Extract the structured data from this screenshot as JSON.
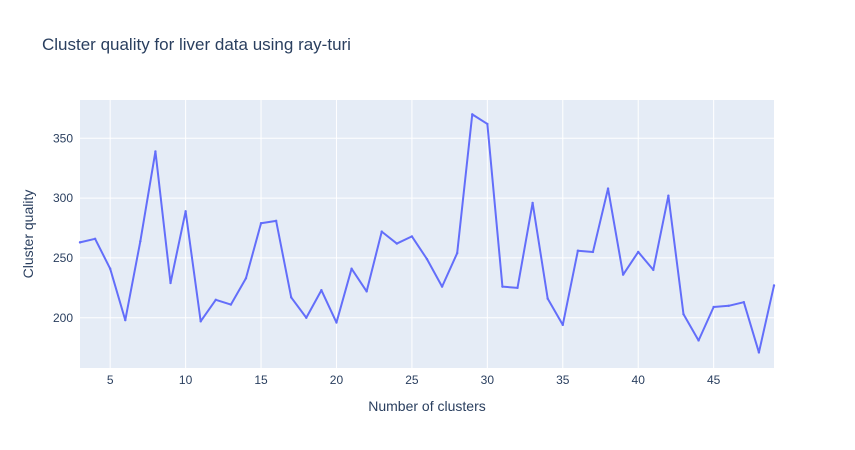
{
  "chart_data": {
    "type": "line",
    "title": "Cluster quality for liver data using ray-turi",
    "xlabel": "Number of clusters",
    "ylabel": "Cluster quality",
    "xlim": [
      3,
      49
    ],
    "ylim": [
      158,
      382
    ],
    "xticks": [
      5,
      10,
      15,
      20,
      25,
      30,
      35,
      40,
      45
    ],
    "yticks": [
      200,
      250,
      300,
      350
    ],
    "grid": true,
    "legend": "none",
    "colors": {
      "line": "#636efa",
      "plot_background": "#e5ecf6",
      "grid": "#ffffff",
      "text": "#2a3f5f",
      "paper_background": "#ffffff"
    },
    "series": [
      {
        "x": [
          3,
          4,
          5,
          6,
          7,
          8,
          9,
          10,
          11,
          12,
          13,
          14,
          15,
          16,
          17,
          18,
          19,
          20,
          21,
          22,
          23,
          24,
          25,
          26,
          27,
          28,
          29,
          30,
          31,
          32,
          33,
          34,
          35,
          36,
          37,
          38,
          39,
          40,
          41,
          42,
          43,
          44,
          45,
          46,
          47,
          48,
          49
        ],
        "values": [
          263,
          266,
          241,
          198,
          264,
          339,
          229,
          289,
          197,
          215,
          211,
          233,
          279,
          281,
          217,
          200,
          223,
          196,
          241,
          222,
          272,
          262,
          268,
          249,
          226,
          254,
          370,
          362,
          226,
          225,
          296,
          216,
          194,
          256,
          255,
          308,
          236,
          255,
          240,
          302,
          203,
          181,
          209,
          210,
          213,
          171,
          227
        ]
      }
    ]
  }
}
